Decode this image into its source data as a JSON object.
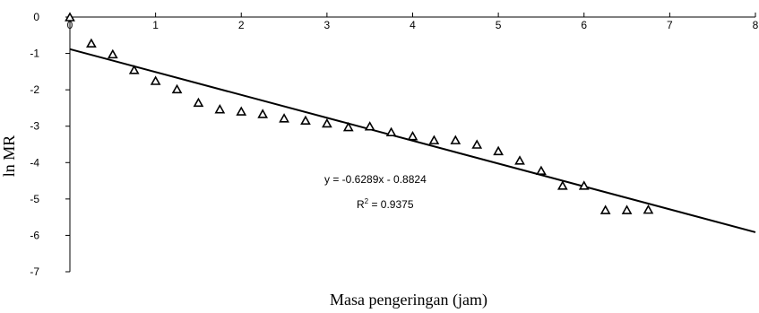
{
  "chart_data": {
    "type": "scatter",
    "xlabel": "Masa pengeringan (jam)",
    "ylabel": "ln MR",
    "xlim": [
      0,
      8
    ],
    "ylim": [
      -7,
      0
    ],
    "xticks": [
      0,
      1,
      2,
      3,
      4,
      5,
      6,
      7,
      8
    ],
    "yticks": [
      0,
      -1,
      -2,
      -3,
      -4,
      -5,
      -6,
      -7
    ],
    "grid": false,
    "series": [
      {
        "marker": "triangle-open",
        "x": [
          0,
          0.25,
          0.5,
          0.75,
          1.0,
          1.25,
          1.5,
          1.75,
          2.0,
          2.25,
          2.5,
          2.75,
          3.0,
          3.25,
          3.5,
          3.75,
          4.0,
          4.25,
          4.5,
          4.75,
          5.0,
          5.25,
          5.5,
          5.75,
          6.0,
          6.25,
          6.5,
          6.75
        ],
        "y": [
          0,
          -0.72,
          -1.02,
          -1.45,
          -1.75,
          -1.98,
          -2.35,
          -2.53,
          -2.59,
          -2.66,
          -2.78,
          -2.84,
          -2.92,
          -3.02,
          -3.0,
          -3.16,
          -3.27,
          -3.38,
          -3.38,
          -3.5,
          -3.68,
          -3.94,
          -4.22,
          -4.63,
          -4.63,
          -5.3,
          -5.3,
          -5.29
        ]
      }
    ],
    "trendline": {
      "type": "linear",
      "slope": -0.6289,
      "intercept": -0.8824,
      "color": "#000000"
    },
    "annotations": {
      "equation": "y = -0.6289x - 0.8824",
      "r2_label": "R",
      "r2_sup": "2",
      "r2_value": " = 0.9375"
    },
    "colors": {
      "axis": "#000000",
      "marker": "#000000"
    }
  }
}
